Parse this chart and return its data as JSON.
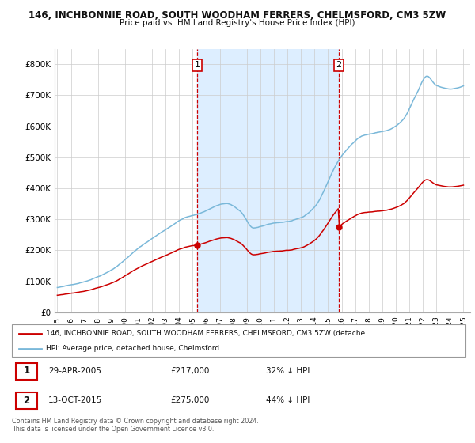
{
  "title_line1": "146, INCHBONNIE ROAD, SOUTH WOODHAM FERRERS, CHELMSFORD, CM3 5ZW",
  "title_line2": "Price paid vs. HM Land Registry's House Price Index (HPI)",
  "ylim": [
    0,
    850000
  ],
  "yticks": [
    0,
    100000,
    200000,
    300000,
    400000,
    500000,
    600000,
    700000,
    800000
  ],
  "ytick_labels": [
    "£0",
    "£100K",
    "£200K",
    "£300K",
    "£400K",
    "£500K",
    "£600K",
    "£700K",
    "£800K"
  ],
  "hpi_color": "#7ab8d9",
  "price_color": "#cc0000",
  "purchase1_year": 2005.33,
  "purchase1_price": 217000,
  "purchase2_year": 2015.79,
  "purchase2_price": 275000,
  "purchase1_date_str": "29-APR-2005",
  "purchase1_price_str": "£217,000",
  "purchase1_hpi_str": "32% ↓ HPI",
  "purchase2_date_str": "13-OCT-2015",
  "purchase2_price_str": "£275,000",
  "purchase2_hpi_str": "44% ↓ HPI",
  "legend_label1": "146, INCHBONNIE ROAD, SOUTH WOODHAM FERRERS, CHELMSFORD, CM3 5ZW (detache",
  "legend_label2": "HPI: Average price, detached house, Chelmsford",
  "footer": "Contains HM Land Registry data © Crown copyright and database right 2024.\nThis data is licensed under the Open Government Licence v3.0.",
  "background_color": "#ffffff",
  "grid_color": "#cccccc",
  "shade_color": "#ddeeff"
}
